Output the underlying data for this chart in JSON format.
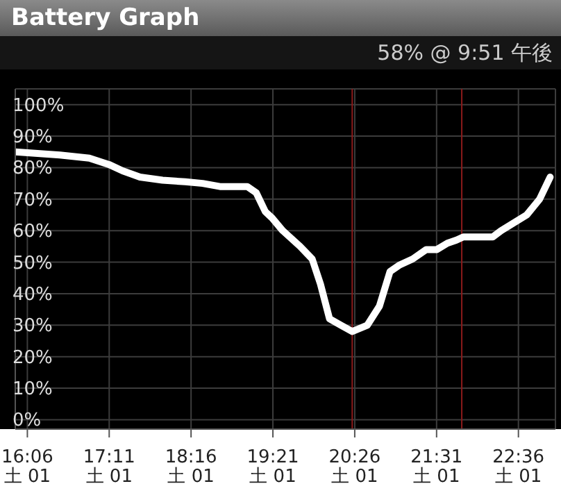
{
  "chart_data": {
    "type": "line",
    "title": "Battery Graph",
    "subtitle": "58% @ 9:51 午後",
    "x": [
      15.94,
      16.53,
      16.92,
      17.18,
      17.36,
      17.59,
      17.89,
      18.19,
      18.42,
      18.65,
      19.01,
      19.13,
      19.25,
      19.34,
      19.48,
      19.71,
      19.87,
      19.98,
      20.1,
      20.25,
      20.4,
      20.6,
      20.76,
      20.9,
      21.02,
      21.2,
      21.38,
      21.52,
      21.66,
      21.78,
      21.87,
      22.26,
      22.37,
      22.71,
      22.88,
      23.02
    ],
    "series": [
      {
        "color": "#ffffff",
        "values": [
          85,
          84,
          83,
          81,
          79,
          77,
          76,
          75.5,
          75,
          74,
          74,
          72,
          66,
          64,
          60,
          55,
          51,
          43,
          32,
          30,
          28,
          30,
          36,
          47,
          49,
          51,
          54,
          54,
          56,
          57,
          58,
          58,
          60,
          65,
          70,
          77
        ]
      }
    ],
    "xlim": [
      15.94,
      23.09
    ],
    "xticks": [
      {
        "value": 16.1,
        "label": "16:06"
      },
      {
        "value": 17.1833,
        "label": "17:11"
      },
      {
        "value": 18.2667,
        "label": "18:16"
      },
      {
        "value": 19.35,
        "label": "19:21"
      },
      {
        "value": 20.4333,
        "label": "20:26"
      },
      {
        "value": 21.5167,
        "label": "21:31"
      },
      {
        "value": 22.6,
        "label": "22:36"
      }
    ],
    "annotations": [
      "土 01",
      "土 01",
      "土 01",
      "土 01",
      "土 01",
      "土 01",
      "土 01"
    ],
    "ylim": [
      -3,
      105
    ],
    "yticks": [
      {
        "value": 0,
        "label": "0%"
      },
      {
        "value": 10,
        "label": "10%"
      },
      {
        "value": 20,
        "label": "20%"
      },
      {
        "value": 30,
        "label": "30%"
      },
      {
        "value": 40,
        "label": "40%"
      },
      {
        "value": 50,
        "label": "50%"
      },
      {
        "value": 60,
        "label": "60%"
      },
      {
        "value": 70,
        "label": "70%"
      },
      {
        "value": 80,
        "label": "80%"
      },
      {
        "value": 90,
        "label": "90%"
      },
      {
        "value": 100,
        "label": "100%"
      }
    ],
    "ref_lines": [
      {
        "axis": "x",
        "value": 20.4,
        "color": "#8b1a1a"
      },
      {
        "axis": "x",
        "value": 21.85,
        "color": "#8b1a1a"
      }
    ],
    "grid": true,
    "marker": "none",
    "line_style": "solid"
  }
}
